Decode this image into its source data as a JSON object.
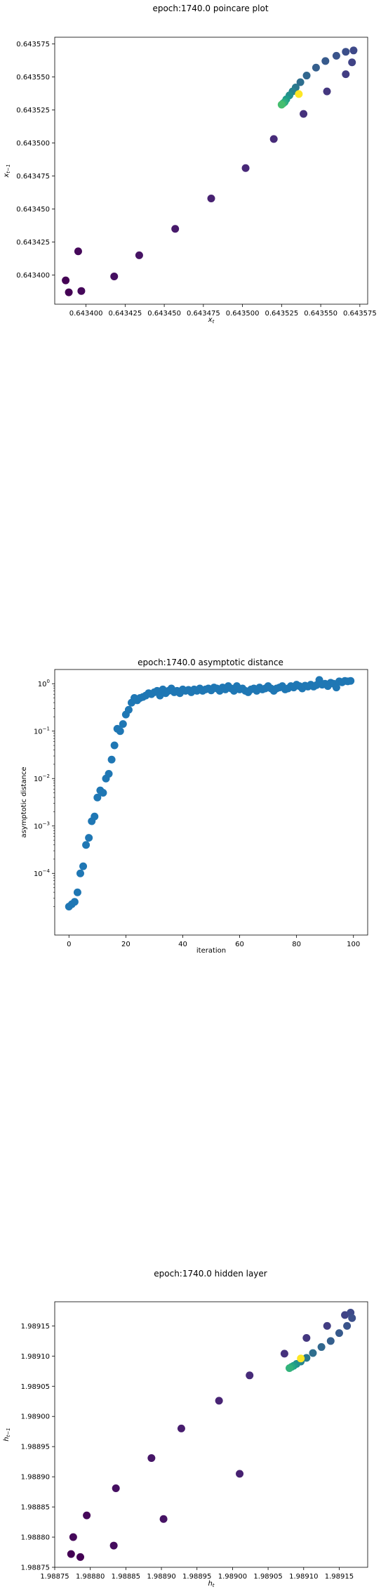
{
  "chart_data": [
    {
      "type": "scatter",
      "title": "epoch:1740.0 poincare plot",
      "xlabel": "x_t",
      "ylabel": "x_{t-1}",
      "xlim": [
        0.64338,
        0.64358
      ],
      "ylim": [
        0.643378,
        0.64358
      ],
      "xticks": [
        "0.643400",
        "0.643425",
        "0.643450",
        "0.643475",
        "0.643500",
        "0.643525",
        "0.643550",
        "0.643575"
      ],
      "yticks": [
        "0.643400",
        "0.643425",
        "0.643450",
        "0.643475",
        "0.643500",
        "0.643525",
        "0.643550",
        "0.643575"
      ],
      "colormap": "viridis",
      "points": [
        {
          "x": 0.643387,
          "y": 0.643396,
          "c": 0.0
        },
        {
          "x": 0.643389,
          "y": 0.643387,
          "c": 0.0
        },
        {
          "x": 0.643397,
          "y": 0.643388,
          "c": 0.02
        },
        {
          "x": 0.643395,
          "y": 0.643418,
          "c": 0.02
        },
        {
          "x": 0.643418,
          "y": 0.643399,
          "c": 0.04
        },
        {
          "x": 0.643434,
          "y": 0.643415,
          "c": 0.05
        },
        {
          "x": 0.643457,
          "y": 0.643435,
          "c": 0.07
        },
        {
          "x": 0.64348,
          "y": 0.643458,
          "c": 0.09
        },
        {
          "x": 0.643502,
          "y": 0.643481,
          "c": 0.11
        },
        {
          "x": 0.64352,
          "y": 0.643503,
          "c": 0.12
        },
        {
          "x": 0.643539,
          "y": 0.643522,
          "c": 0.14
        },
        {
          "x": 0.643554,
          "y": 0.643539,
          "c": 0.16
        },
        {
          "x": 0.643566,
          "y": 0.643552,
          "c": 0.18
        },
        {
          "x": 0.64357,
          "y": 0.643561,
          "c": 0.2
        },
        {
          "x": 0.643571,
          "y": 0.64357,
          "c": 0.22
        },
        {
          "x": 0.643566,
          "y": 0.643569,
          "c": 0.24
        },
        {
          "x": 0.64356,
          "y": 0.643566,
          "c": 0.26
        },
        {
          "x": 0.643553,
          "y": 0.643562,
          "c": 0.28
        },
        {
          "x": 0.643547,
          "y": 0.643557,
          "c": 0.3
        },
        {
          "x": 0.643541,
          "y": 0.643551,
          "c": 0.33
        },
        {
          "x": 0.643537,
          "y": 0.643546,
          "c": 0.36
        },
        {
          "x": 0.643534,
          "y": 0.643542,
          "c": 0.4
        },
        {
          "x": 0.643532,
          "y": 0.643539,
          "c": 0.45
        },
        {
          "x": 0.64353,
          "y": 0.643536,
          "c": 0.5
        },
        {
          "x": 0.643528,
          "y": 0.643533,
          "c": 0.55
        },
        {
          "x": 0.643527,
          "y": 0.643531,
          "c": 0.6
        },
        {
          "x": 0.643526,
          "y": 0.64353,
          "c": 0.65
        },
        {
          "x": 0.643525,
          "y": 0.643529,
          "c": 0.7
        },
        {
          "x": 0.643536,
          "y": 0.643537,
          "c": 1.0
        }
      ]
    },
    {
      "type": "scatter",
      "title": "epoch:1740.0 asymptotic distance",
      "xlabel": "iteration",
      "ylabel": "asymptotic distance",
      "xlim": [
        -5,
        105
      ],
      "yscale": "log",
      "ylim_log10": [
        -5.3,
        0.3
      ],
      "xticks": [
        "0",
        "20",
        "40",
        "60",
        "80",
        "100"
      ],
      "yticks": [
        "10^0",
        "10^-1",
        "10^-2",
        "10^-3",
        "10^-4"
      ],
      "x": [
        0,
        1,
        2,
        3,
        4,
        5,
        6,
        7,
        8,
        9,
        10,
        11,
        12,
        13,
        14,
        15,
        16,
        17,
        18,
        19,
        20,
        21,
        22,
        23,
        24,
        25,
        26,
        27,
        28,
        29,
        30,
        31,
        32,
        33,
        34,
        35,
        36,
        37,
        38,
        39,
        40,
        41,
        42,
        43,
        44,
        45,
        46,
        47,
        48,
        49,
        50,
        51,
        52,
        53,
        54,
        55,
        56,
        57,
        58,
        59,
        60,
        61,
        62,
        63,
        64,
        65,
        66,
        67,
        68,
        69,
        70,
        71,
        72,
        73,
        74,
        75,
        76,
        77,
        78,
        79,
        80,
        81,
        82,
        83,
        84,
        85,
        86,
        87,
        88,
        89,
        90,
        91,
        92,
        93,
        94,
        95,
        96,
        97,
        98,
        99
      ],
      "y_log10": [
        -4.7,
        -4.65,
        -4.6,
        -4.4,
        -4.0,
        -3.85,
        -3.4,
        -3.25,
        -2.9,
        -2.8,
        -2.4,
        -2.25,
        -2.3,
        -2.0,
        -1.9,
        -1.6,
        -1.3,
        -0.95,
        -1.0,
        -0.85,
        -0.65,
        -0.55,
        -0.4,
        -0.3,
        -0.35,
        -0.3,
        -0.28,
        -0.25,
        -0.2,
        -0.22,
        -0.18,
        -0.15,
        -0.25,
        -0.12,
        -0.2,
        -0.15,
        -0.1,
        -0.18,
        -0.15,
        -0.2,
        -0.12,
        -0.15,
        -0.13,
        -0.18,
        -0.12,
        -0.15,
        -0.1,
        -0.15,
        -0.12,
        -0.1,
        -0.14,
        -0.08,
        -0.1,
        -0.15,
        -0.08,
        -0.12,
        -0.05,
        -0.1,
        -0.15,
        -0.05,
        -0.12,
        -0.1,
        -0.15,
        -0.18,
        -0.12,
        -0.1,
        -0.15,
        -0.08,
        -0.12,
        -0.1,
        -0.05,
        -0.1,
        -0.15,
        -0.1,
        -0.08,
        -0.05,
        -0.12,
        -0.1,
        -0.05,
        -0.08,
        -0.02,
        -0.05,
        -0.1,
        -0.04,
        -0.06,
        -0.02,
        -0.06,
        -0.03,
        0.08,
        -0.02,
        0.0,
        -0.05,
        0.02,
        0.0,
        -0.08,
        0.05,
        0.03,
        0.06,
        0.05,
        0.06
      ]
    },
    {
      "type": "scatter",
      "title": "epoch:1740.0 hidden layer",
      "xlabel": "h_t",
      "ylabel": "h_{t-1}",
      "xlim": [
        1.98875,
        1.98919
      ],
      "ylim": [
        1.98875,
        1.98919
      ],
      "xticks": [
        "1.98875",
        "1.98880",
        "1.98885",
        "1.98890",
        "1.98895",
        "1.98900",
        "1.98905",
        "1.98910",
        "1.98915"
      ],
      "yticks": [
        "1.98875",
        "1.98880",
        "1.98885",
        "1.98890",
        "1.98895",
        "1.98900",
        "1.98905",
        "1.98910",
        "1.98915"
      ],
      "colormap": "viridis",
      "points": [
        {
          "x": 1.988773,
          "y": 1.988772,
          "c": 0.0
        },
        {
          "x": 1.988786,
          "y": 1.988767,
          "c": 0.0
        },
        {
          "x": 1.988776,
          "y": 1.9888,
          "c": 0.02
        },
        {
          "x": 1.988795,
          "y": 1.988836,
          "c": 0.02
        },
        {
          "x": 1.988833,
          "y": 1.988786,
          "c": 0.03
        },
        {
          "x": 1.988836,
          "y": 1.988881,
          "c": 0.04
        },
        {
          "x": 1.988903,
          "y": 1.98883,
          "c": 0.05
        },
        {
          "x": 1.988886,
          "y": 1.988931,
          "c": 0.06
        },
        {
          "x": 1.988928,
          "y": 1.98898,
          "c": 0.08
        },
        {
          "x": 1.988981,
          "y": 1.989026,
          "c": 0.1
        },
        {
          "x": 1.98901,
          "y": 1.988905,
          "c": 0.09
        },
        {
          "x": 1.989024,
          "y": 1.989068,
          "c": 0.12
        },
        {
          "x": 1.989073,
          "y": 1.989104,
          "c": 0.14
        },
        {
          "x": 1.989104,
          "y": 1.98913,
          "c": 0.16
        },
        {
          "x": 1.989133,
          "y": 1.98915,
          "c": 0.18
        },
        {
          "x": 1.989158,
          "y": 1.989168,
          "c": 0.2
        },
        {
          "x": 1.989166,
          "y": 1.989172,
          "c": 0.22
        },
        {
          "x": 1.989168,
          "y": 1.989163,
          "c": 0.24
        },
        {
          "x": 1.989161,
          "y": 1.98915,
          "c": 0.26
        },
        {
          "x": 1.98915,
          "y": 1.989138,
          "c": 0.28
        },
        {
          "x": 1.989138,
          "y": 1.989125,
          "c": 0.3
        },
        {
          "x": 1.989125,
          "y": 1.989115,
          "c": 0.33
        },
        {
          "x": 1.989113,
          "y": 1.989105,
          "c": 0.36
        },
        {
          "x": 1.989104,
          "y": 1.989097,
          "c": 0.4
        },
        {
          "x": 1.989096,
          "y": 1.989091,
          "c": 0.45
        },
        {
          "x": 1.98909,
          "y": 1.989087,
          "c": 0.5
        },
        {
          "x": 1.989086,
          "y": 1.989084,
          "c": 0.55
        },
        {
          "x": 1.989083,
          "y": 1.989082,
          "c": 0.6
        },
        {
          "x": 1.98908,
          "y": 1.98908,
          "c": 0.65
        },
        {
          "x": 1.989096,
          "y": 1.989096,
          "c": 1.0
        }
      ]
    }
  ]
}
